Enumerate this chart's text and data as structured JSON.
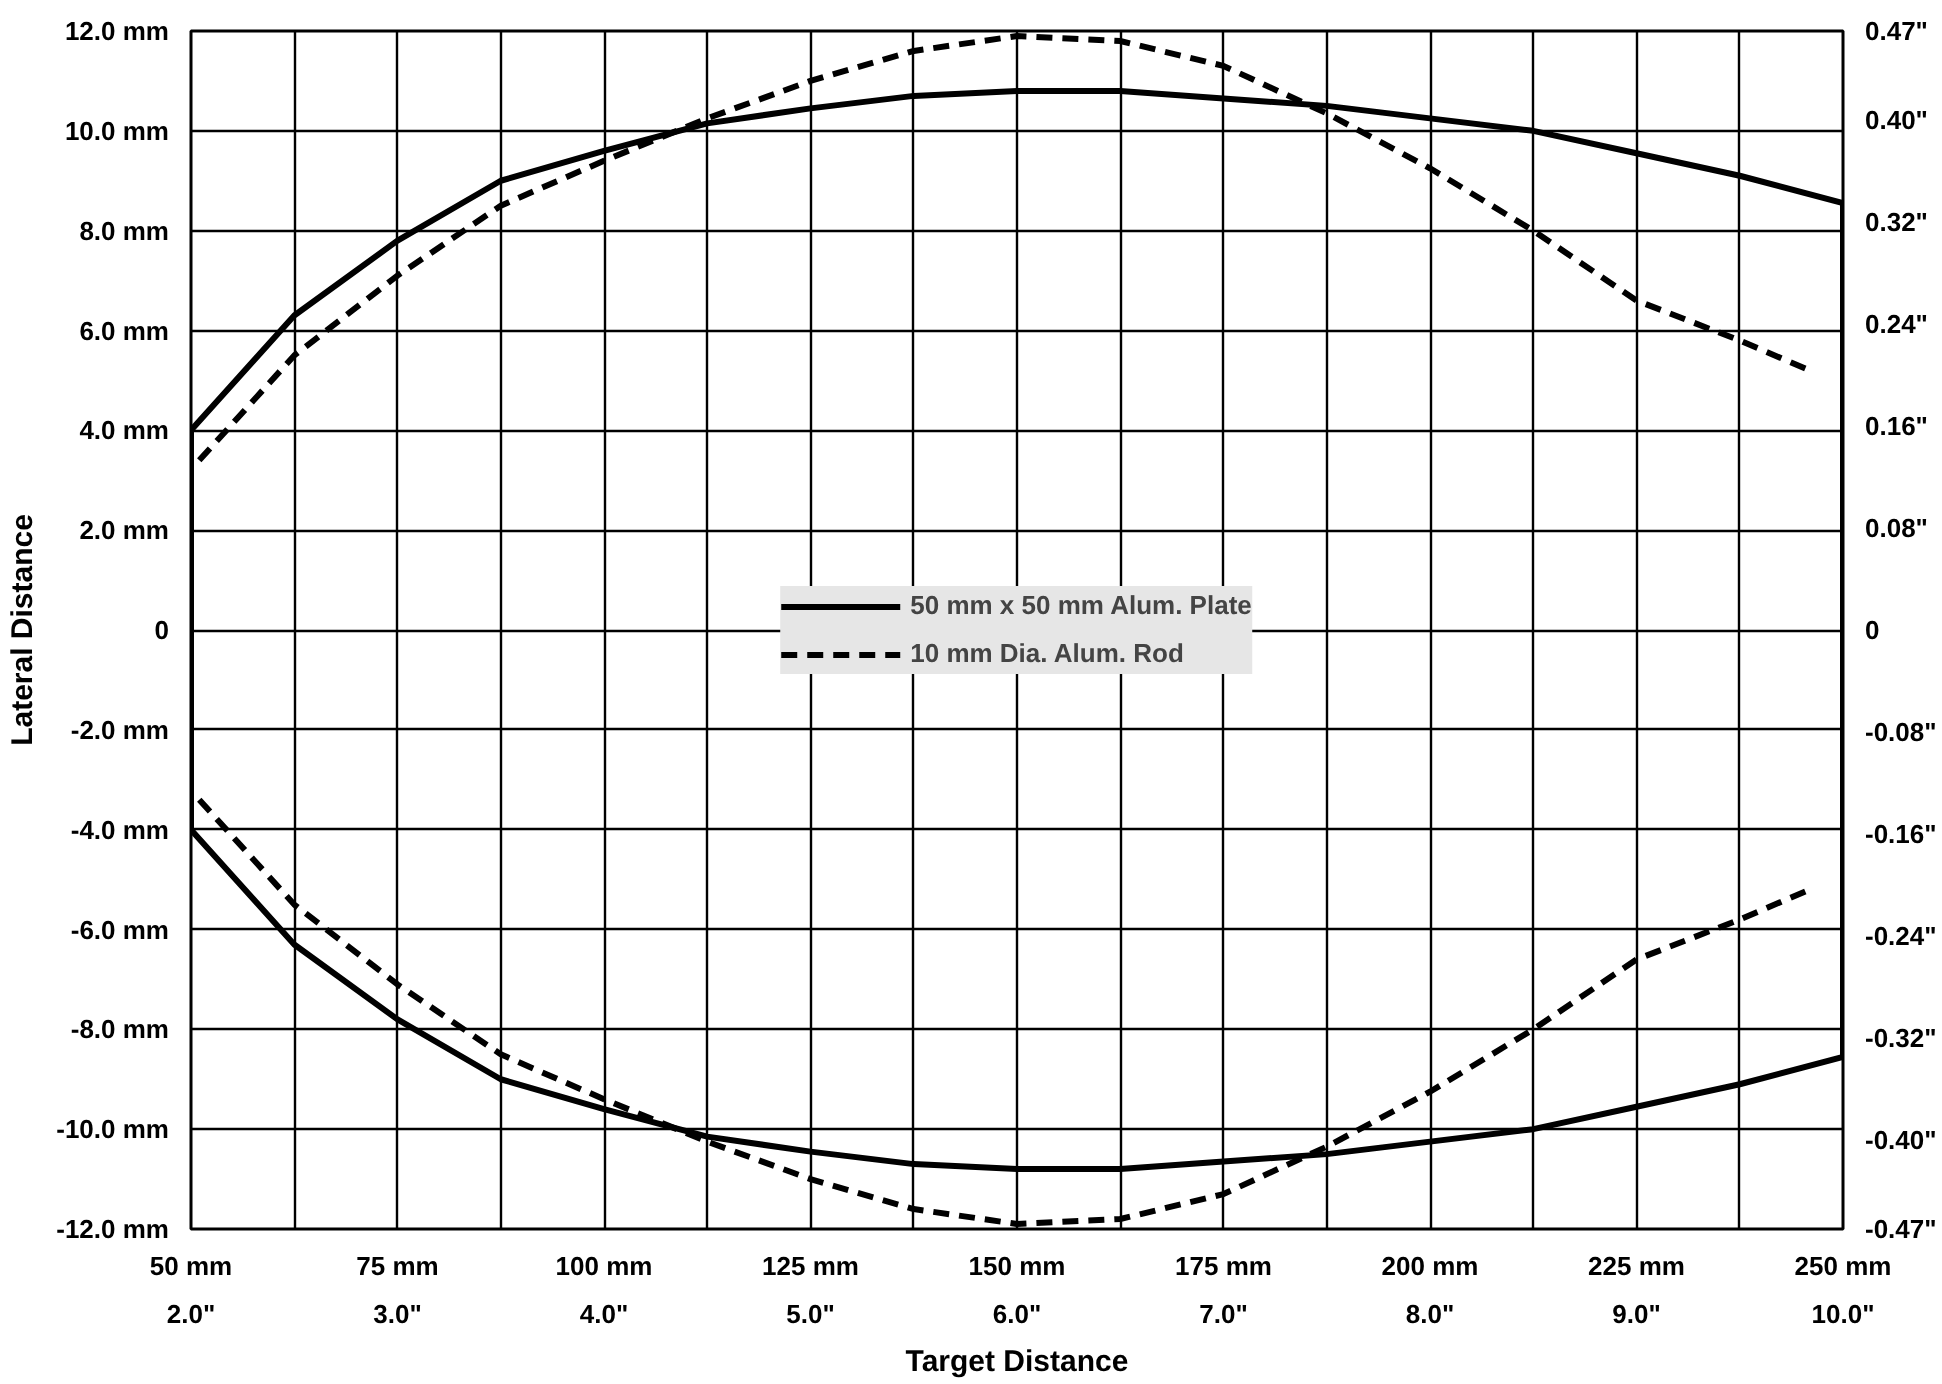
{
  "chart_data": {
    "type": "line",
    "xlabel": "Target Distance",
    "ylabel": "Lateral Distance",
    "xlim": [
      50,
      250
    ],
    "ylim": [
      -12,
      12
    ],
    "y2lim": [
      -0.47,
      0.47
    ],
    "xticks": [
      {
        "value": 50,
        "label": "50 mm"
      },
      {
        "value": 62.5,
        "label": null
      },
      {
        "value": 75,
        "label": "75 mm"
      },
      {
        "value": 87.5,
        "label": null
      },
      {
        "value": 100,
        "label": "100 mm"
      },
      {
        "value": 112.5,
        "label": null
      },
      {
        "value": 125,
        "label": "125 mm"
      },
      {
        "value": 137.5,
        "label": null
      },
      {
        "value": 150,
        "label": "150 mm"
      },
      {
        "value": 162.5,
        "label": null
      },
      {
        "value": 175,
        "label": "175 mm"
      },
      {
        "value": 187.5,
        "label": null
      },
      {
        "value": 200,
        "label": "200 mm"
      },
      {
        "value": 212.5,
        "label": null
      },
      {
        "value": 225,
        "label": "225 mm"
      },
      {
        "value": 237.5,
        "label": null
      },
      {
        "value": 250,
        "label": "250 mm"
      }
    ],
    "x2lim": [
      2,
      10
    ],
    "x2ticks": [
      {
        "value": 2,
        "label": "2.0\""
      },
      {
        "value": 3,
        "label": "3.0\""
      },
      {
        "value": 4,
        "label": "4.0\""
      },
      {
        "value": 5,
        "label": "5.0\""
      },
      {
        "value": 6,
        "label": "6.0\""
      },
      {
        "value": 7,
        "label": "7.0\""
      },
      {
        "value": 8,
        "label": "8.0\""
      },
      {
        "value": 9,
        "label": "9.0\""
      },
      {
        "value": 10,
        "label": "10.0\""
      }
    ],
    "yticks": [
      {
        "value": -12,
        "label": "-12.0 mm"
      },
      {
        "value": -10,
        "label": "-10.0 mm"
      },
      {
        "value": -8,
        "label": "-8.0 mm"
      },
      {
        "value": -6,
        "label": "-6.0 mm"
      },
      {
        "value": -4,
        "label": "-4.0 mm"
      },
      {
        "value": -2,
        "label": "-2.0 mm"
      },
      0,
      {
        "value": 2,
        "label": "2.0 mm"
      },
      {
        "value": 4,
        "label": "4.0 mm"
      },
      {
        "value": 6,
        "label": "6.0 mm"
      },
      {
        "value": 8,
        "label": "8.0 mm"
      },
      {
        "value": 10,
        "label": "10.0 mm"
      },
      {
        "value": 12,
        "label": "12.0 mm"
      }
    ],
    "y2ticks": [
      {
        "value": -0.47,
        "label": "-0.47\""
      },
      {
        "value": -0.4,
        "label": "-0.40\""
      },
      {
        "value": -0.32,
        "label": "-0.32\""
      },
      {
        "value": -0.24,
        "label": "-0.24\""
      },
      {
        "value": -0.16,
        "label": "-0.16\""
      },
      {
        "value": -0.08,
        "label": "-0.08\""
      },
      0,
      {
        "value": 0.08,
        "label": "0.08\""
      },
      {
        "value": 0.16,
        "label": "0.16\""
      },
      {
        "value": 0.24,
        "label": "0.24\""
      },
      {
        "value": 0.32,
        "label": "0.32\""
      },
      {
        "value": 0.4,
        "label": "0.40\""
      },
      {
        "value": 0.47,
        "label": "0.47\""
      }
    ],
    "grid": true,
    "legend": "center",
    "marker": "none",
    "series": [
      {
        "name": "50 mm x 50 mm Alum. Plate",
        "color": "#000000",
        "line_style": "solid",
        "x": [
          50,
          62.5,
          75,
          87.5,
          100,
          112.5,
          125,
          137.5,
          150,
          162.5,
          175,
          187.5,
          200,
          212.5,
          225,
          237.5,
          250
        ],
        "values": [
          4.0,
          6.3,
          7.8,
          9.0,
          9.6,
          10.15,
          10.45,
          10.7,
          10.8,
          10.8,
          10.65,
          10.5,
          10.25,
          10.0,
          9.55,
          9.1,
          8.55
        ]
      },
      {
        "color": "#000000",
        "line_style": "solid",
        "x": [
          50,
          50,
          62.5,
          75,
          87.5,
          100,
          112.5,
          125,
          137.5,
          150,
          162.5,
          175,
          187.5,
          200,
          212.5,
          225,
          237.5,
          250,
          250
        ],
        "values": [
          4.0,
          -4.0,
          -6.3,
          -7.8,
          -9.0,
          -9.6,
          -10.15,
          -10.45,
          -10.7,
          -10.8,
          -10.8,
          -10.65,
          -10.5,
          -10.25,
          -10.0,
          -9.55,
          -9.1,
          -8.55,
          8.55
        ]
      },
      {
        "name": "10 mm Dia. Alum. Rod",
        "color": "#000000",
        "line_style": "dashed",
        "x": [
          51,
          62.5,
          75,
          87.5,
          100,
          112.5,
          125,
          137.5,
          150,
          162.5,
          175,
          187.5,
          200,
          212.5,
          225,
          237.5,
          246
        ],
        "values": [
          3.4,
          5.5,
          7.1,
          8.5,
          9.4,
          10.25,
          11.0,
          11.6,
          11.9,
          11.8,
          11.3,
          10.35,
          9.25,
          8.0,
          6.6,
          5.8,
          5.2
        ]
      },
      {
        "color": "#000000",
        "line_style": "dashed",
        "x": [
          51,
          62.5,
          75,
          87.5,
          100,
          112.5,
          125,
          137.5,
          150,
          162.5,
          175,
          187.5,
          200,
          212.5,
          225,
          237.5,
          246
        ],
        "values": [
          -3.4,
          -5.5,
          -7.1,
          -8.5,
          -9.4,
          -10.25,
          -11.0,
          -11.6,
          -11.9,
          -11.8,
          -11.3,
          -10.35,
          -9.25,
          -8.0,
          -6.6,
          -5.8,
          -5.2
        ]
      }
    ]
  }
}
